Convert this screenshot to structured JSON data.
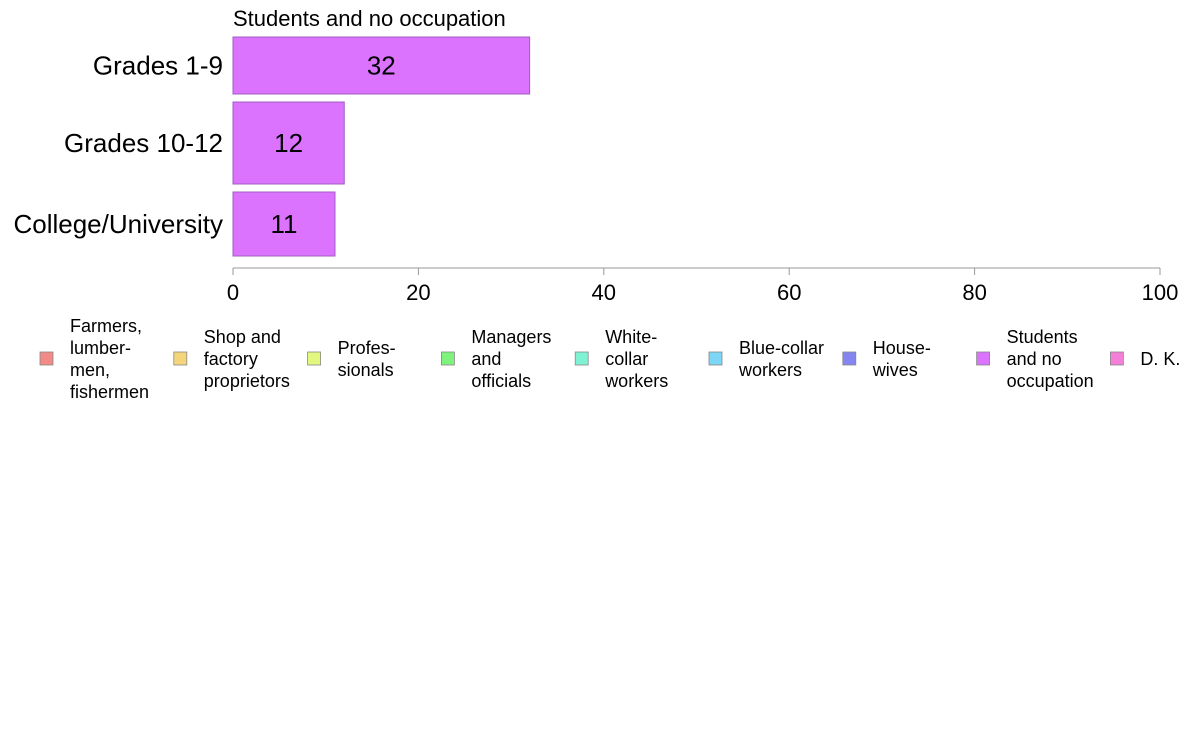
{
  "chart_data": {
    "type": "bar",
    "orientation": "horizontal",
    "title": "Students and no occupation",
    "xlabel": "",
    "ylabel": "",
    "categories": [
      "Grades 1-9",
      "Grades 10-12",
      "College/University"
    ],
    "series": [
      {
        "name": "Students and no occupation",
        "values": [
          32,
          12,
          11
        ],
        "color": "#db73ff"
      }
    ],
    "xlim": [
      0,
      100
    ],
    "xticks": [
      0,
      20,
      40,
      60,
      80,
      100
    ],
    "grid": false,
    "legend": {
      "position": "bottom",
      "entries": [
        {
          "label": "Farmers, lumber- men, fishermen",
          "lines": [
            "Farmers,",
            "lumber-",
            "men,",
            "fishermen"
          ],
          "color": "#f28b87"
        },
        {
          "label": "Shop and factory proprietors",
          "lines": [
            "Shop and",
            "factory",
            "proprietors"
          ],
          "color": "#f5d57c"
        },
        {
          "label": "Profes- sionals",
          "lines": [
            "Profes-",
            "sionals"
          ],
          "color": "#e1f77e"
        },
        {
          "label": "Managers and officials",
          "lines": [
            "Managers",
            "and",
            "officials"
          ],
          "color": "#7ff27e"
        },
        {
          "label": "White- collar workers",
          "lines": [
            "White-",
            "collar",
            "workers"
          ],
          "color": "#7ef2d3"
        },
        {
          "label": "Blue-collar workers",
          "lines": [
            "Blue-collar",
            "workers"
          ],
          "color": "#7dd6f5"
        },
        {
          "label": "House- wives",
          "lines": [
            "House-",
            "wives"
          ],
          "color": "#8585f2"
        },
        {
          "label": "Students and no occupation",
          "lines": [
            "Students",
            "and no",
            "occupation"
          ],
          "color": "#db73ff"
        },
        {
          "label": "D. K.",
          "lines": [
            "D. K."
          ],
          "color": "#f47fd9"
        }
      ]
    }
  }
}
